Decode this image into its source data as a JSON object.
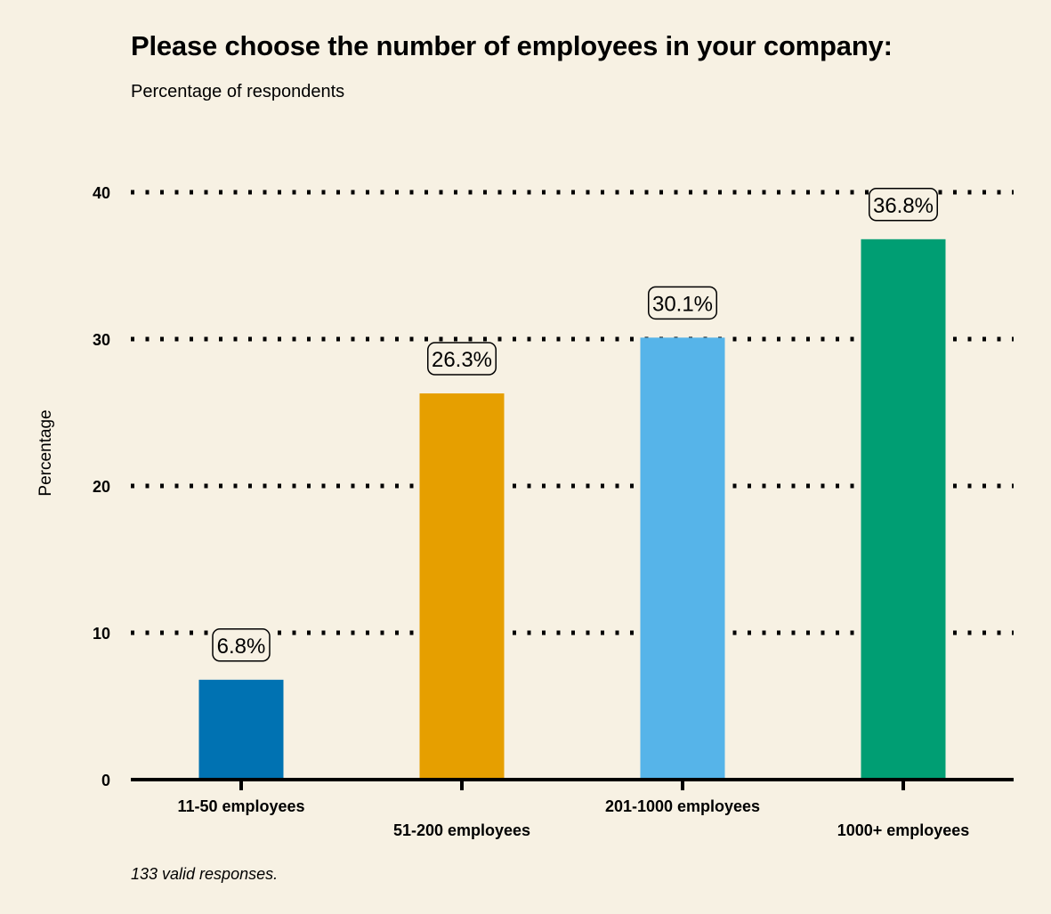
{
  "chart_data": {
    "type": "bar",
    "title": "Please choose the number of employees in your company:",
    "subtitle": "Percentage of respondents",
    "ylabel": "Percentage",
    "xlabel": "",
    "ylim": [
      0,
      40
    ],
    "yticks": [
      0,
      10,
      20,
      30,
      40
    ],
    "grid": "horizontal-dotted",
    "categories": [
      "11-50 employees",
      "51-200 employees",
      "201-1000 employees",
      "1000+ employees"
    ],
    "values": [
      6.8,
      26.3,
      30.1,
      36.8
    ],
    "data_labels": [
      "6.8%",
      "26.3%",
      "30.1%",
      "36.8%"
    ],
    "colors": [
      "#0072b2",
      "#e69f00",
      "#56b4e9",
      "#009e73"
    ],
    "footnote": "133 valid responses."
  }
}
